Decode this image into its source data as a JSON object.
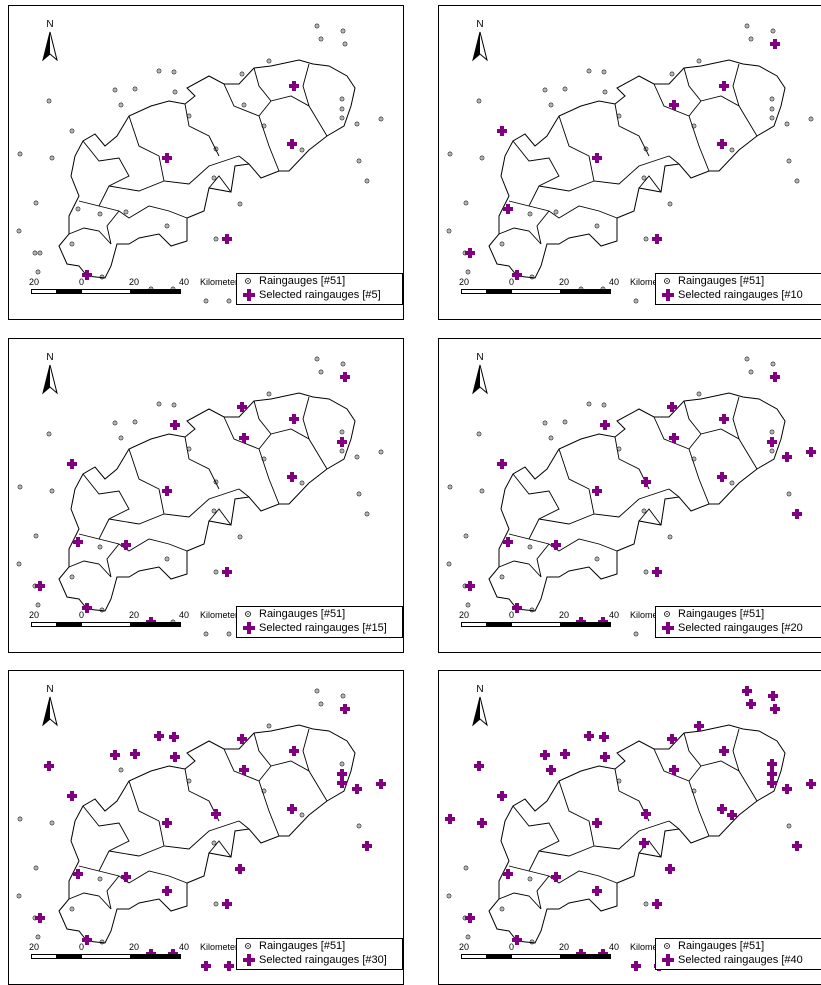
{
  "north_label": "N",
  "scale": {
    "ticks": [
      "20",
      "0",
      "20",
      "40"
    ],
    "unit": "Kilometers"
  },
  "legend": {
    "raingauges_label": "Raingauges [#51]"
  },
  "colors": {
    "selected": "#800080",
    "gauge": "#000000",
    "boundary": "#000000"
  },
  "panels": [
    {
      "selected_label": "Selected raingauges [#5]",
      "selected_count": 5
    },
    {
      "selected_label": "Selected raingauges [#10",
      "selected_count": 10
    },
    {
      "selected_label": "Selected raingauges [#15]",
      "selected_count": 15
    },
    {
      "selected_label": "Selected raingauges [#20",
      "selected_count": 20
    },
    {
      "selected_label": "Selected raingauges [#30]",
      "selected_count": 30
    },
    {
      "selected_label": "Selected raingauges [#40",
      "selected_count": 40
    }
  ]
}
